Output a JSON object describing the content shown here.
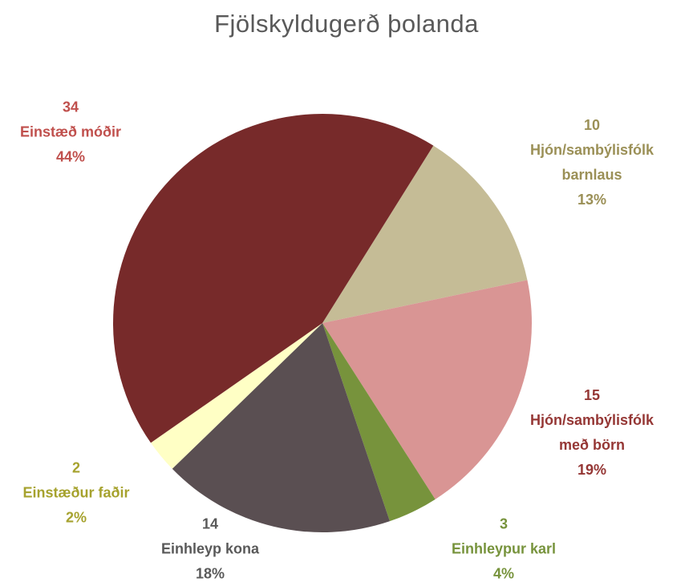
{
  "chart_data": {
    "type": "pie",
    "title": "Fjölskyldugerð þolanda",
    "categories": [
      "Hjón/sambýlisfólk barnlaus",
      "Hjón/sambýlisfólk með börn",
      "Einhleypur karl",
      "Einhleyp kona",
      "Einstæður faðir",
      "Einstæð móðir"
    ],
    "values": [
      10,
      15,
      3,
      14,
      2,
      34
    ],
    "percent_labels": [
      "13%",
      "19%",
      "4%",
      "18%",
      "2%",
      "44%"
    ],
    "colors": [
      "#c5bc96",
      "#d99594",
      "#77933c",
      "#5a4f52",
      "#ffffc5",
      "#772a2a"
    ],
    "label_colors": [
      "#9b9057",
      "#953735",
      "#77933c",
      "#595959",
      "#a6a22e",
      "#c0504d"
    ]
  }
}
